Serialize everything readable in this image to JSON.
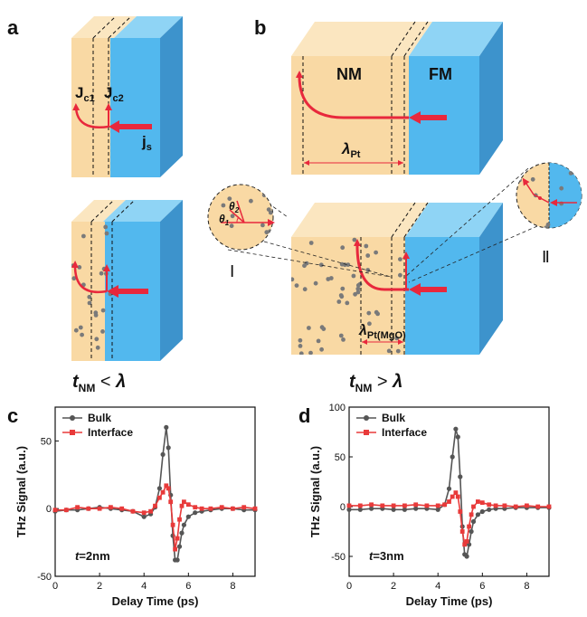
{
  "panel_labels": {
    "a": "a",
    "b": "b",
    "c": "c",
    "d": "d"
  },
  "panel_a": {
    "jc1": {
      "main": "J",
      "sub": "c1"
    },
    "jc2": {
      "main": "J",
      "sub": "c2"
    },
    "js": {
      "main": "j",
      "sub": "s"
    },
    "condition": {
      "t": "t",
      "sub": "NM",
      "rel": " < ",
      "lambda": "λ"
    }
  },
  "panel_b": {
    "nm": "NM",
    "fm": "FM",
    "lambda_pt": {
      "main": "λ",
      "sub": "Pt"
    },
    "lambda_pt_mgo": {
      "main": "λ",
      "sub": "Pt(MgO)"
    },
    "theta1": {
      "main": "θ",
      "sub": "1"
    },
    "theta2": {
      "main": "θ",
      "sub": "2"
    },
    "roman_1": "Ⅰ",
    "roman_2": "Ⅱ",
    "condition": {
      "t": "t",
      "sub": "NM",
      "rel": " > ",
      "lambda": "λ"
    }
  },
  "colors": {
    "nm_front": "#f9d9a4",
    "nm_top": "#fbe6c0",
    "fm_front": "#52b8ee",
    "fm_top": "#8fd4f5",
    "fm_side": "#3d93cc",
    "arrow_red": "#e8283c",
    "bulk": "#555555",
    "interface": "#e83a3a"
  },
  "chart_data": [
    {
      "type": "line",
      "panel": "c",
      "ylabel": "THz Signal (a.u.)",
      "xlabel": "Delay Time (ps)",
      "xlim": [
        0,
        9
      ],
      "ylim": [
        -50,
        75
      ],
      "xticks": [
        "0",
        "2",
        "4",
        "6",
        "8"
      ],
      "yticks": [
        "-50",
        "0",
        "50"
      ],
      "annotation": {
        "t": "t",
        "rest": "=2nm"
      },
      "legend": "top-left",
      "series": [
        {
          "name": "Bulk",
          "x": [
            0,
            0.5,
            1,
            1.5,
            2,
            2.5,
            3,
            3.5,
            4,
            4.3,
            4.5,
            4.7,
            4.85,
            5.0,
            5.1,
            5.2,
            5.3,
            5.4,
            5.5,
            5.6,
            5.7,
            5.8,
            6.0,
            6.3,
            6.6,
            7,
            7.5,
            8,
            8.5,
            9
          ],
          "y": [
            -2,
            -1,
            -1,
            0,
            1,
            0,
            -1,
            -2,
            -6,
            -4,
            1,
            15,
            40,
            60,
            45,
            10,
            -20,
            -38,
            -38,
            -28,
            -18,
            -12,
            -6,
            -3,
            -2,
            -1,
            0,
            0,
            -1,
            -1
          ]
        },
        {
          "name": "Interface",
          "x": [
            0,
            0.5,
            1,
            1.5,
            2,
            2.5,
            3,
            3.5,
            4,
            4.3,
            4.5,
            4.7,
            4.85,
            5.0,
            5.1,
            5.2,
            5.3,
            5.4,
            5.5,
            5.6,
            5.7,
            5.8,
            6.0,
            6.3,
            6.6,
            7,
            7.5,
            8,
            8.5,
            9
          ],
          "y": [
            -1,
            -1,
            1,
            0,
            0,
            1,
            0,
            -2,
            -3,
            -2,
            2,
            8,
            12,
            17,
            15,
            5,
            -12,
            -30,
            -22,
            -8,
            2,
            5,
            3,
            1,
            0,
            0,
            1,
            0,
            1,
            0
          ]
        }
      ]
    },
    {
      "type": "line",
      "panel": "d",
      "ylabel": "THz Signal (a.u.)",
      "xlabel": "Delay Time (ps)",
      "xlim": [
        0,
        9
      ],
      "ylim": [
        -70,
        100
      ],
      "xticks": [
        "0",
        "2",
        "4",
        "6",
        "8"
      ],
      "yticks": [
        "-50",
        "0",
        "50",
        "100"
      ],
      "annotation": {
        "t": "t",
        "rest": "=3nm"
      },
      "legend": "top-left",
      "series": [
        {
          "name": "Bulk",
          "x": [
            0,
            0.5,
            1,
            1.5,
            2,
            2.5,
            3,
            3.5,
            4,
            4.3,
            4.5,
            4.65,
            4.8,
            4.9,
            5.0,
            5.1,
            5.2,
            5.3,
            5.4,
            5.5,
            5.6,
            5.8,
            6.0,
            6.3,
            6.6,
            7,
            7.5,
            8,
            8.5,
            9
          ],
          "y": [
            -3,
            -3,
            -2,
            -2,
            -3,
            -3,
            -2,
            -2,
            -3,
            2,
            18,
            50,
            78,
            70,
            30,
            -20,
            -48,
            -50,
            -38,
            -25,
            -15,
            -8,
            -5,
            -3,
            -2,
            -2,
            -1,
            -1,
            -1,
            -1
          ]
        },
        {
          "name": "Interface",
          "x": [
            0,
            0.5,
            1,
            1.5,
            2,
            2.5,
            3,
            3.5,
            4,
            4.3,
            4.5,
            4.65,
            4.8,
            4.9,
            5.0,
            5.1,
            5.2,
            5.3,
            5.4,
            5.5,
            5.6,
            5.8,
            6.0,
            6.3,
            6.6,
            7,
            7.5,
            8,
            8.5,
            9
          ],
          "y": [
            1,
            1,
            2,
            1,
            1,
            1,
            2,
            1,
            1,
            2,
            5,
            10,
            14,
            10,
            -5,
            -25,
            -38,
            -35,
            -20,
            -8,
            0,
            5,
            4,
            2,
            1,
            1,
            0,
            1,
            0,
            0
          ]
        }
      ]
    }
  ]
}
